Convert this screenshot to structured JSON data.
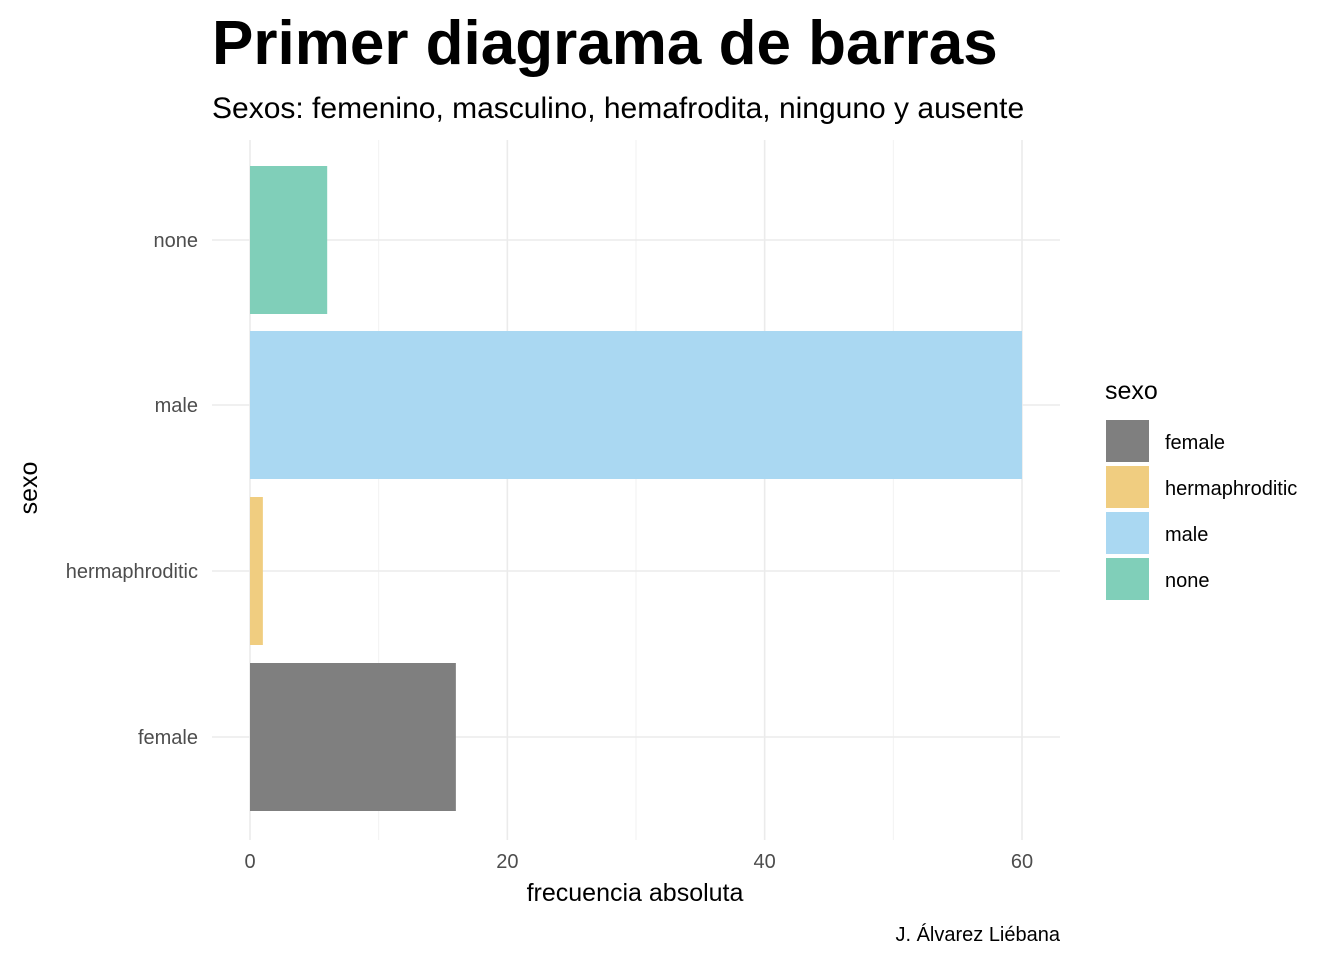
{
  "chart_data": {
    "type": "bar",
    "orientation": "horizontal",
    "title": "Primer diagrama de barras",
    "subtitle": "Sexos: femenino, masculino, hemafrodita, ninguno y ausente",
    "categories": [
      "female",
      "hermaphroditic",
      "male",
      "none"
    ],
    "values": [
      16,
      1,
      60,
      6
    ],
    "colors": [
      "#7f7f7f",
      "#f0cd80",
      "#aad8f2",
      "#80cfb9"
    ],
    "xlabel": "frecuencia absoluta",
    "ylabel": "sexo",
    "xlim": [
      0,
      63
    ],
    "xticks": [
      0,
      20,
      40,
      60
    ],
    "grid": true,
    "legend": {
      "title": "sexo",
      "position": "right",
      "items": [
        "female",
        "hermaphroditic",
        "male",
        "none"
      ]
    },
    "caption": "J. Álvarez Liébana"
  }
}
